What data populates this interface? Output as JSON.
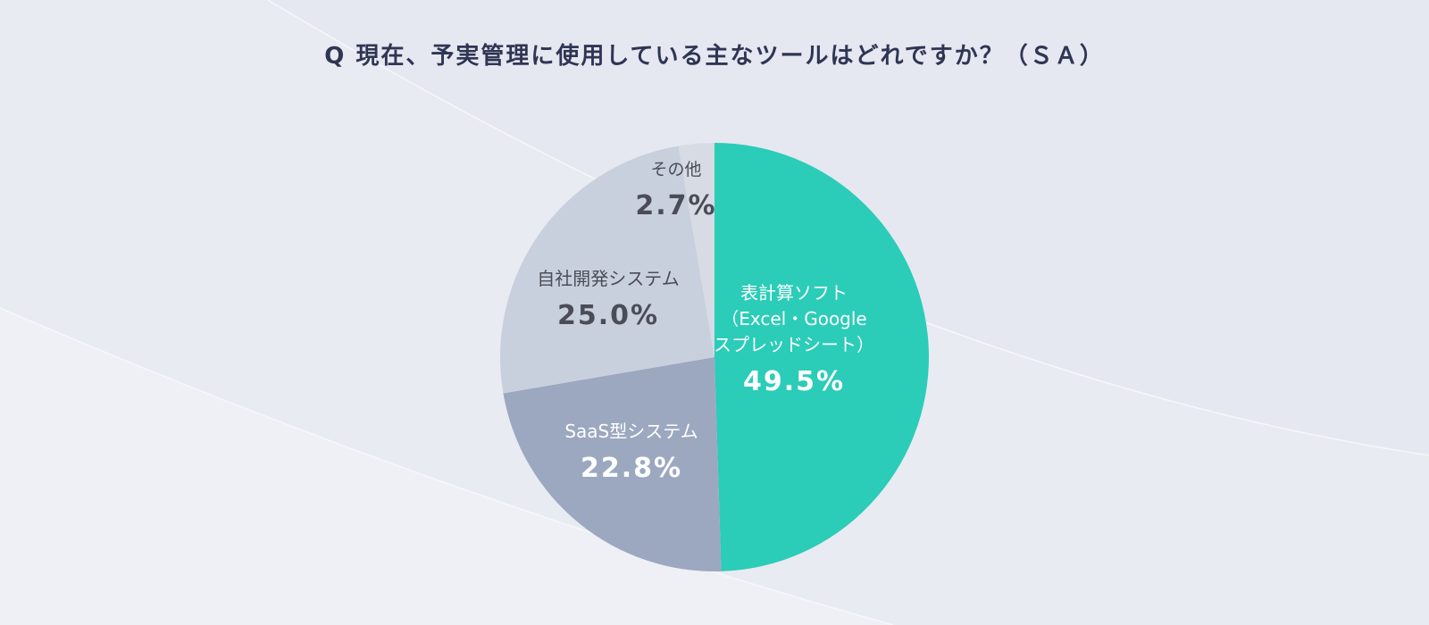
{
  "title": "Q 現在、予実管理に使用している主なツールはどれですか？（ＳＡ）",
  "colors": {
    "background": "#e9ebf2",
    "title_text": "#2f3553",
    "light_label_text": "#ffffff",
    "dark_label_text": "#4a4d57"
  },
  "chart_data": {
    "type": "pie",
    "start": "12 o'clock",
    "direction": "clockwise",
    "slices": [
      {
        "label_lines": [
          "表計算ソフト",
          "（Excel・Google",
          "スプレッドシート）"
        ],
        "value": 49.5,
        "value_label": "49.5%",
        "color": "#2bccb8"
      },
      {
        "label_lines": [
          "SaaS型システム"
        ],
        "value": 22.8,
        "value_label": "22.8%",
        "color": "#9ca8c0"
      },
      {
        "label_lines": [
          "自社開発システム"
        ],
        "value": 25.0,
        "value_label": "25.0%",
        "color": "#c9d0dd"
      },
      {
        "label_lines": [
          "その他"
        ],
        "value": 2.7,
        "value_label": "2.7%",
        "color": "#d6dbe4"
      }
    ]
  }
}
